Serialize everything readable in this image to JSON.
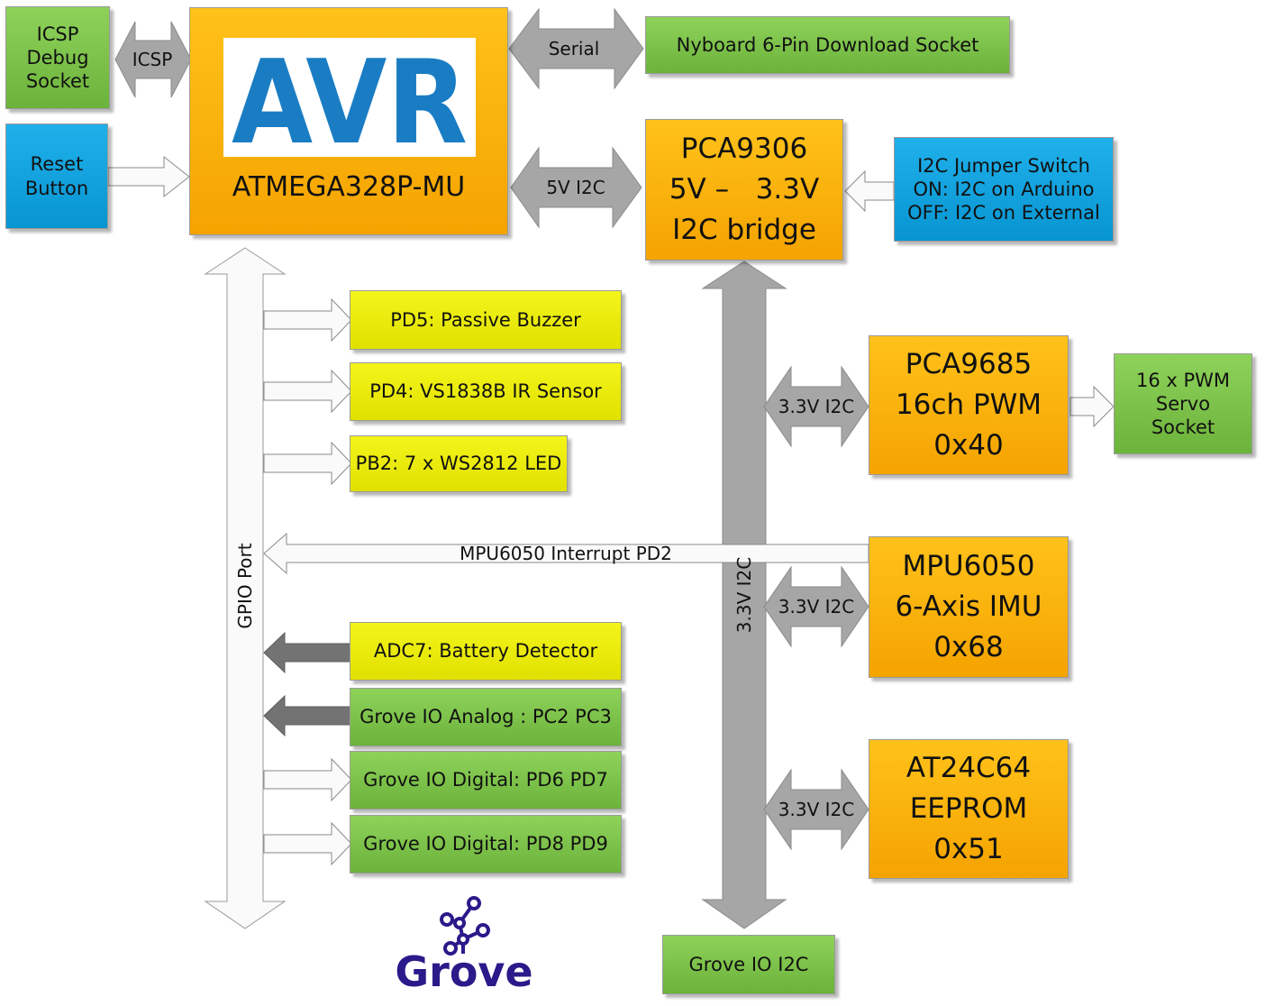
{
  "mcu": {
    "title": "ATMEGA328P-MU",
    "logo_text": "AVR"
  },
  "icsp_socket": [
    "ICSP",
    "Debug",
    "Socket"
  ],
  "reset_button": [
    "Reset",
    "Button"
  ],
  "download_socket": "Nyboard 6-Pin Download Socket",
  "bridge": [
    "PCA9306",
    "5V –   3.3V",
    "I2C bridge"
  ],
  "jumper": [
    "I2C Jumper Switch",
    "ON: I2C on Arduino",
    "OFF: I2C on External"
  ],
  "pca9685": [
    "PCA9685",
    "16ch PWM",
    "0x40"
  ],
  "servo_socket": [
    "16 x PWM",
    "Servo",
    "Socket"
  ],
  "mpu6050": [
    "MPU6050",
    "6-Axis IMU",
    "0x68"
  ],
  "eeprom": [
    "AT24C64",
    "EEPROM",
    "0x51"
  ],
  "grove_i2c": "Grove IO I2C",
  "gpio_items": [
    "PD5: Passive Buzzer",
    "PD4: VS1838B IR Sensor",
    "PB2: 7 x WS2812 LED",
    "ADC7: Battery Detector",
    "Grove IO Analog : PC2 PC3",
    "Grove IO Digital: PD6 PD7",
    "Grove IO Digital: PD8 PD9"
  ],
  "labels": {
    "icsp": "ICSP",
    "serial": "Serial",
    "i2c_5v": "5V I2C",
    "i2c_33": "3.3V I2C",
    "bus_33": "3.3V I2C",
    "gpio_port": "GPIO Port",
    "interrupt": "MPU6050 Interrupt PD2"
  },
  "grove_logo_text": "Grove",
  "colors": {
    "green": "#7ac142",
    "blue": "#0aa0dc",
    "yellow": "#eaea00",
    "orange": "#fbb40a",
    "arrow_gray": "#a6a6a6",
    "arrow_dark": "#707070",
    "avr_blue": "#1a7dc4",
    "grove_purple": "#2a1a8a"
  }
}
